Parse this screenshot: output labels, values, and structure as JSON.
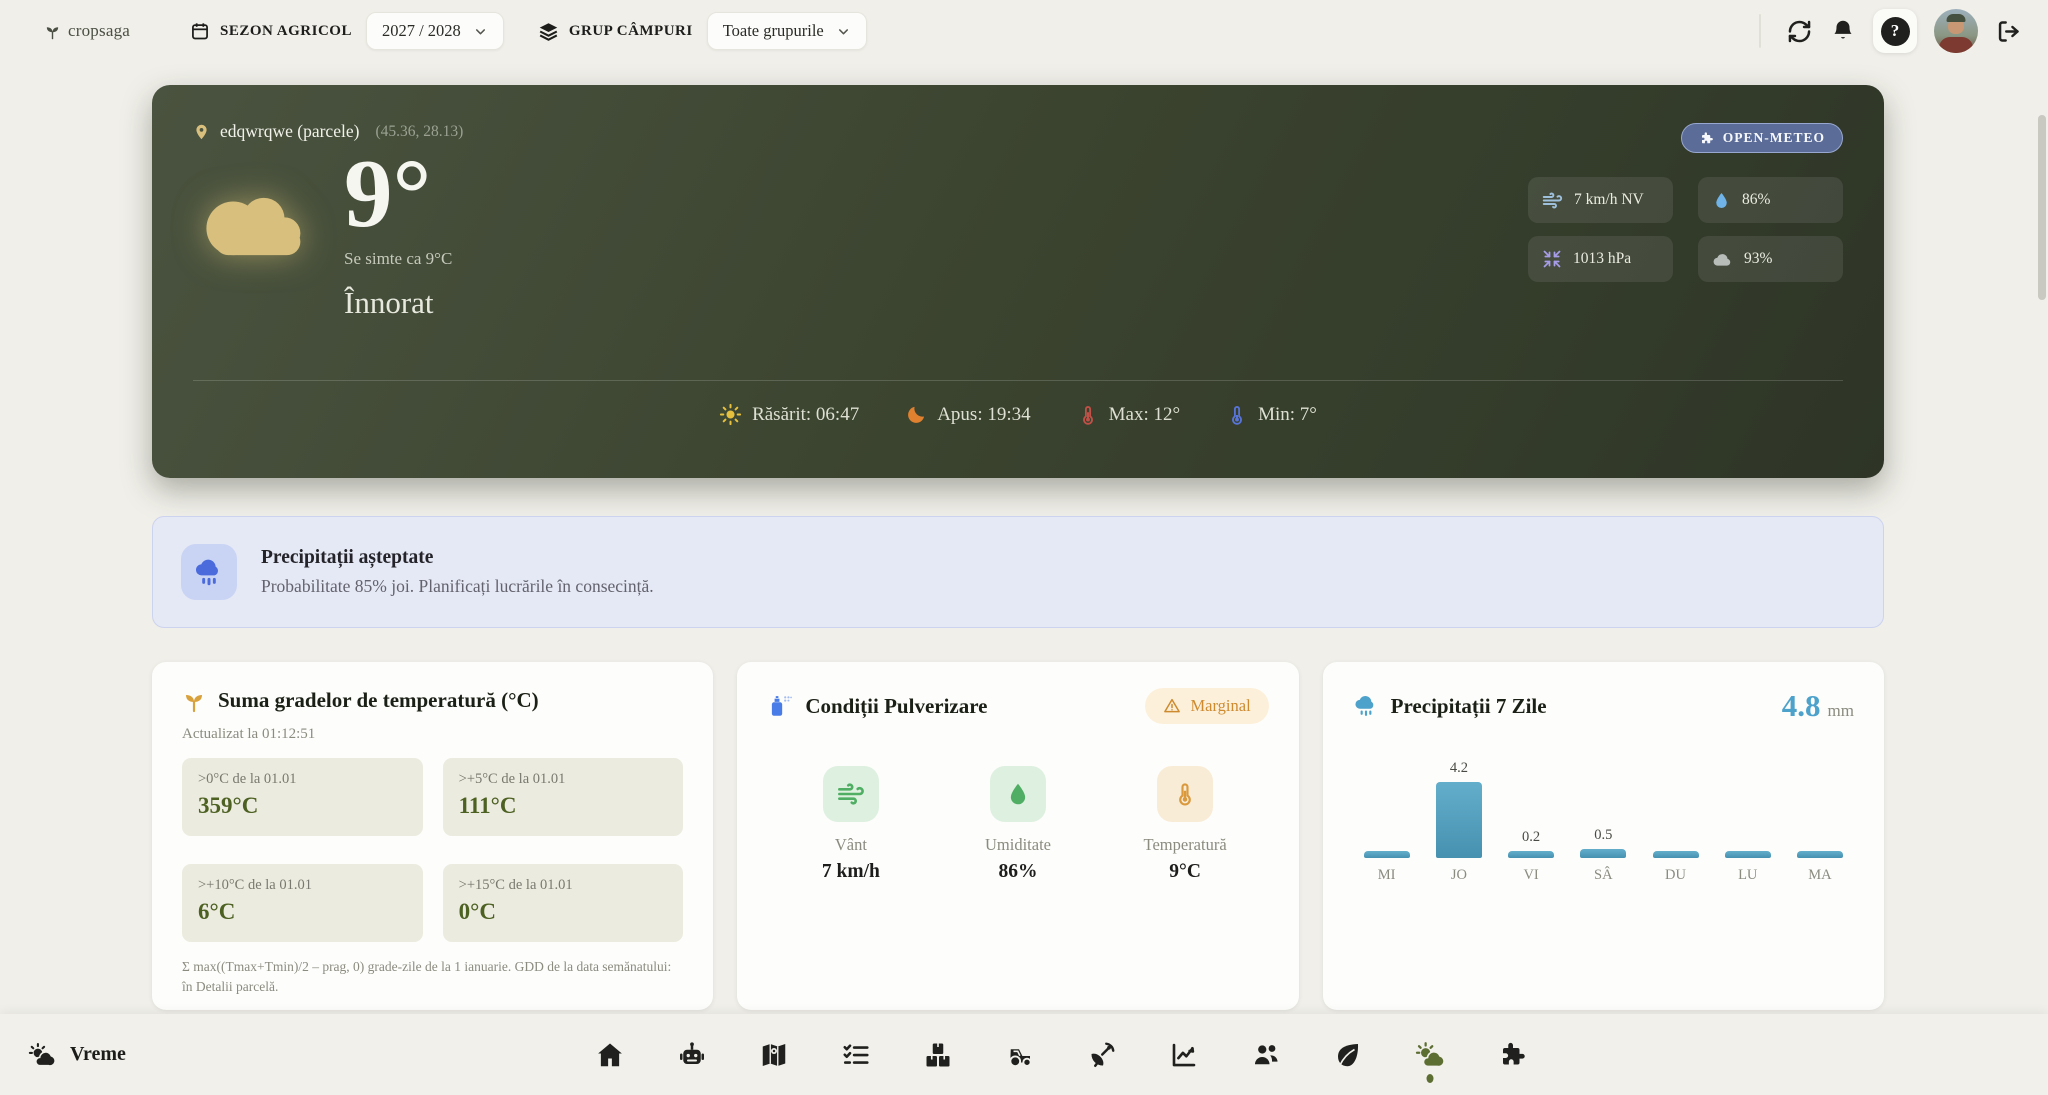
{
  "topbar": {
    "logo": "cropsaga",
    "season_label": "SEZON AGRICOL",
    "season_value": "2027 / 2028",
    "group_label": "GRUP CÂMPURI",
    "group_value": "Toate grupurile",
    "help_glyph": "?",
    "icons": [
      "refresh-icon",
      "bell-icon",
      "help-icon",
      "avatar",
      "logout-icon"
    ]
  },
  "weather": {
    "location": "edqwrqwe (parcele)",
    "coords": "(45.36, 28.13)",
    "provider_badge": "OPEN-METEO",
    "temperature": "9°",
    "feels_like": "Se simte ca 9°C",
    "condition": "Înnorat",
    "stats": [
      {
        "icon": "wind-icon",
        "value": "7 km/h NV"
      },
      {
        "icon": "droplet-icon",
        "value": "86%"
      },
      {
        "icon": "pressure-icon",
        "value": "1013 hPa"
      },
      {
        "icon": "cloud-icon",
        "value": "93%"
      }
    ],
    "sunrise_label": "Răsărit: 06:47",
    "sunset_label": "Apus: 19:34",
    "max_label": "Max: 12°",
    "min_label": "Min: 7°"
  },
  "alert": {
    "icon": "rain-cloud-icon",
    "title": "Precipitații așteptate",
    "message": "Probabilitate 85% joi. Planificați lucrările în consecință."
  },
  "gdd_card": {
    "icon": "sprout-icon",
    "title": "Suma gradelor de temperatură (°C)",
    "updated": "Actualizat la 01:12:51",
    "stats": [
      {
        "label": ">0°C de la 01.01",
        "value": "359°C"
      },
      {
        "label": ">+5°C de la 01.01",
        "value": "111°C"
      },
      {
        "label": ">+10°C de la 01.01",
        "value": "6°C"
      },
      {
        "label": ">+15°C de la 01.01",
        "value": "0°C"
      }
    ],
    "footnote": "Σ max((Tmax+Tmin)/2 – prag, 0) grade-zile de la 1 ianuarie. GDD de la data semănatului: în Detalii parcelă."
  },
  "spray_card": {
    "icon": "spray-can-icon",
    "title": "Condiții Pulverizare",
    "badge": "Marginal",
    "stats": [
      {
        "icon": "wind-icon",
        "label": "Vânt",
        "value": "7 km/h"
      },
      {
        "icon": "droplet-icon",
        "label": "Umiditate",
        "value": "86%"
      },
      {
        "icon": "thermometer-icon",
        "label": "Temperatură",
        "value": "9°C"
      }
    ]
  },
  "precip_card": {
    "icon": "rain-cloud-icon",
    "title": "Precipitații 7 Zile",
    "total_value": "4.8",
    "total_unit": "mm"
  },
  "chart_data": {
    "type": "bar",
    "title": "Precipitații 7 Zile",
    "categories": [
      "MI",
      "JO",
      "VI",
      "SÂ",
      "DU",
      "LU",
      "MA"
    ],
    "values": [
      0,
      4.2,
      0.2,
      0.5,
      0,
      0,
      0
    ],
    "unit": "mm",
    "total": 4.8,
    "ylim": [
      0,
      4.2
    ],
    "bar_color": "#54a3c4",
    "value_labels_shown_for_positive_only": true
  },
  "bottombar": {
    "active_label": "Vreme",
    "icons": [
      "home-icon",
      "robot-icon",
      "map-icon",
      "tasks-icon",
      "packages-icon",
      "tractor-icon",
      "satellite-icon",
      "analytics-icon",
      "team-icon",
      "leaf-icon",
      "weather-icon",
      "puzzle-icon"
    ],
    "active_icon": "weather-icon"
  },
  "colors": {
    "page_bg": "#f0efe9",
    "hero_bg_dark": "#333b2b",
    "hero_gold": "#d9bf7d",
    "accent_green": "#4d6123",
    "accent_blue": "#4da2cb",
    "alert_bg": "#e5e8f5",
    "badge_blue": "#5a6c97",
    "marginal_orange": "#cd8a2e",
    "nav_active": "#5d6e33"
  }
}
